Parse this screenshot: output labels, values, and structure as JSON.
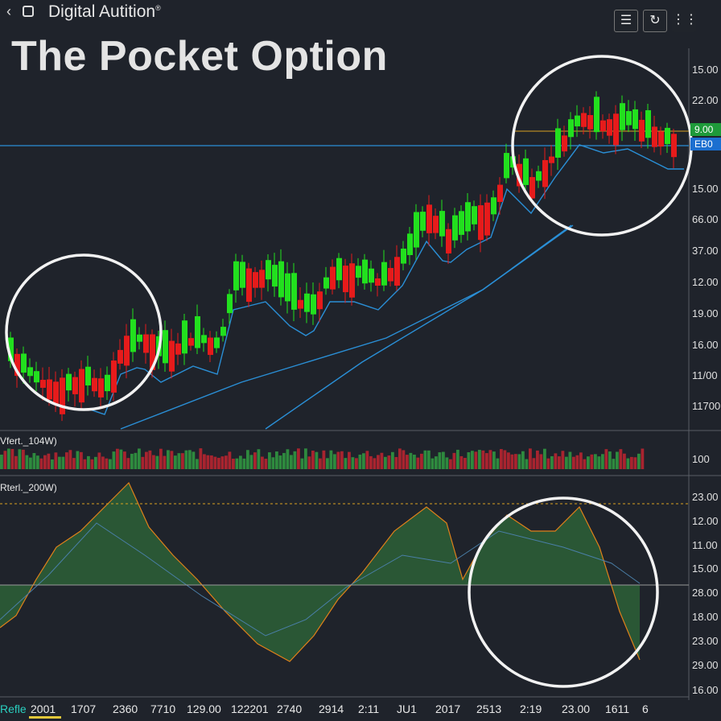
{
  "app": {
    "title": "Digital Autition",
    "title_mark": "®",
    "headline": "The Pocket Option"
  },
  "icons": {
    "back": "chevron-left-icon",
    "app": "window-icon",
    "menu": "menu-icon",
    "refresh": "refresh-icon",
    "grid": "grid-icon"
  },
  "price_axis": {
    "labels": [
      "15.00",
      "22.00",
      "9.00",
      "15.00",
      "66.00",
      "37.00",
      "12.00",
      "19.00",
      "16.00",
      "11/00",
      "11700"
    ],
    "tag_green": "9.00",
    "tag_blue": "EB0"
  },
  "volume_panel": {
    "label": "Vfert._104W)",
    "axis_value": "100"
  },
  "oscillator_panel": {
    "label": "Rterl._200W)",
    "axis_labels": [
      "23.00",
      "12.00",
      "11.00",
      "15.00",
      "28.00",
      "18.00",
      "23.00",
      "29.00",
      "16.00"
    ]
  },
  "x_axis": {
    "labels": [
      "Refle",
      "2001",
      "1707",
      "2360",
      "7710",
      "129.00",
      "122201",
      "2740",
      "2914",
      "2:11",
      "JU1",
      "2017",
      "2513",
      "2:19",
      "23.00",
      "1611",
      "6"
    ]
  },
  "colors": {
    "bull": "#22e01e",
    "bear": "#e61b1b",
    "ma": "#2a8fd6",
    "background": "#1f232b",
    "osc_positive": "#2f6a3a",
    "osc_negative": "#6b1c2a",
    "dashed_level": "#d8a020"
  }
}
